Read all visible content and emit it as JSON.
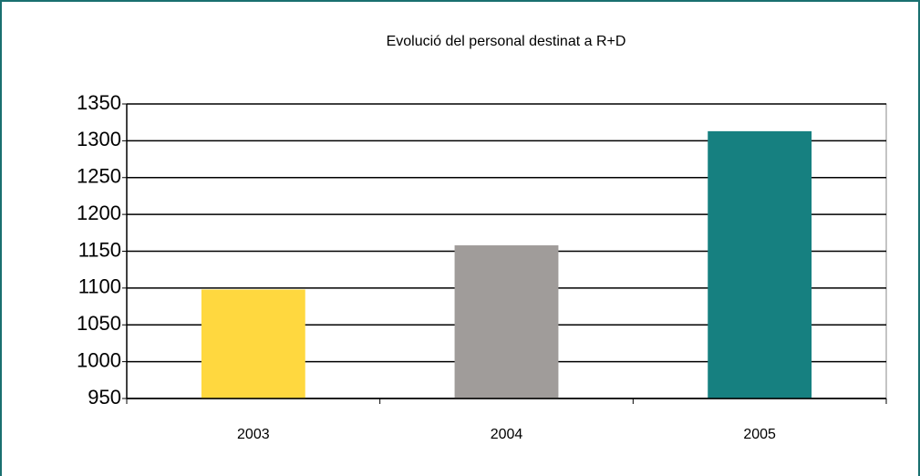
{
  "chart_data": {
    "type": "bar",
    "title": "Evolució del personal destinat a R+D",
    "categories": [
      "2003",
      "2004",
      "2005"
    ],
    "values": [
      1098,
      1158,
      1313
    ],
    "colors": [
      "#ffd83f",
      "#a09c9a",
      "#168080"
    ],
    "ylim": [
      950,
      1350
    ],
    "yticks": [
      950,
      1000,
      1050,
      1100,
      1150,
      1200,
      1250,
      1300,
      1350
    ],
    "grid": true
  }
}
